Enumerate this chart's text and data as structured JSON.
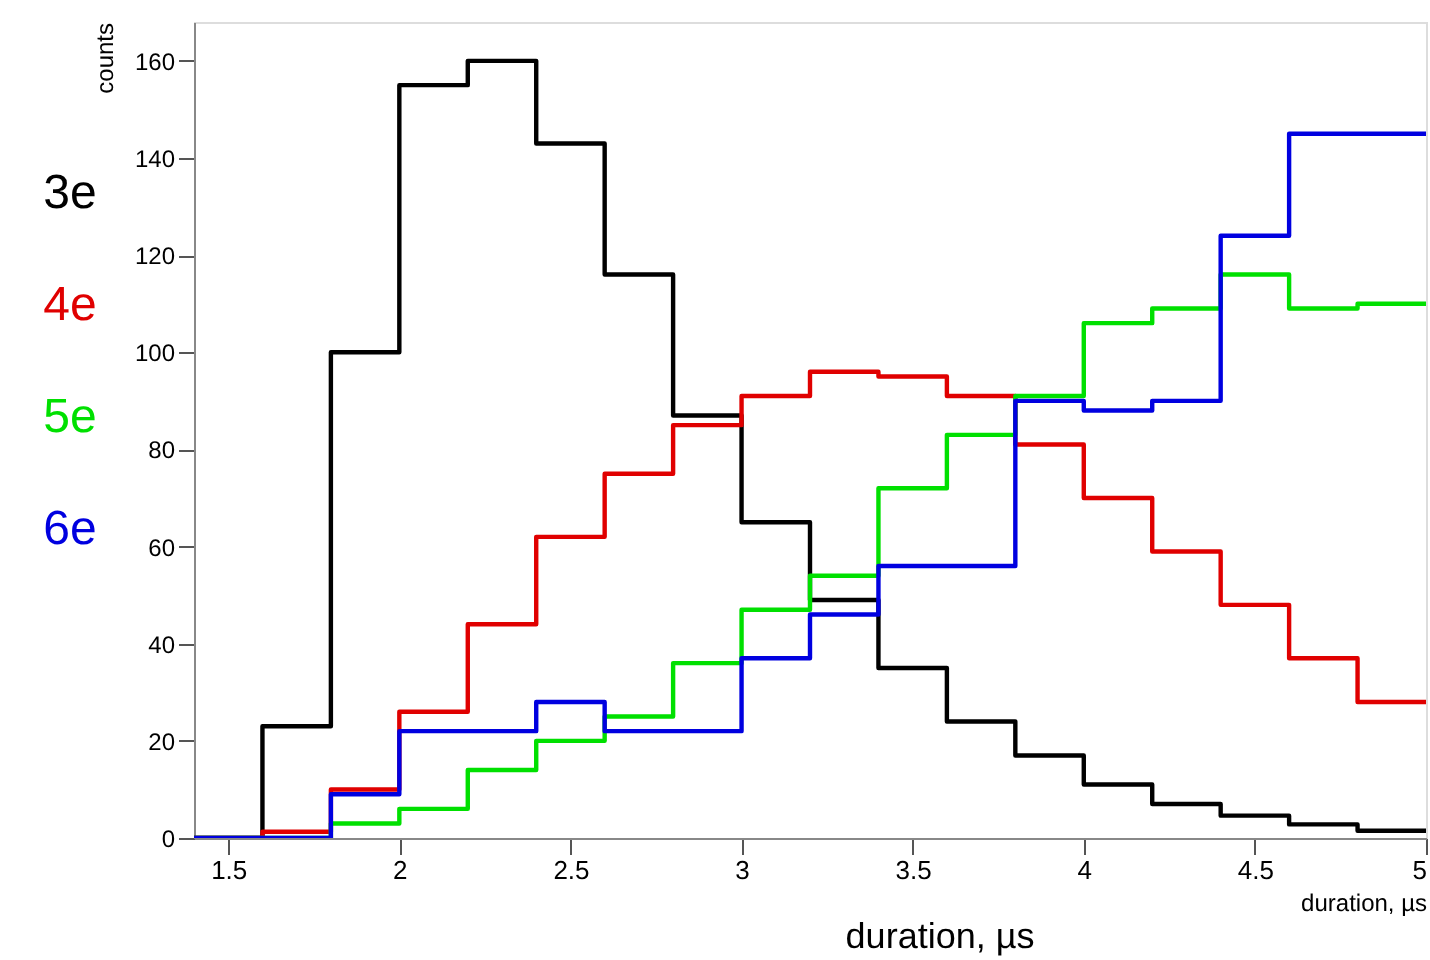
{
  "chart_data": {
    "type": "histogram",
    "xlabel": "duration, µs",
    "ylabel": "counts",
    "bins": [
      1.4,
      1.6,
      1.8,
      2.0,
      2.2,
      2.4,
      2.6,
      2.8,
      3.0,
      3.2,
      3.4,
      3.6,
      3.8,
      4.0,
      4.2,
      4.4,
      4.6,
      4.8,
      5.0
    ],
    "series": [
      {
        "name": "3e",
        "color": "#000000",
        "values": [
          0,
          23,
          100,
          155,
          160,
          143,
          116,
          87,
          65,
          49,
          35,
          24,
          17,
          11,
          7,
          4.6,
          2.8,
          1.5
        ]
      },
      {
        "name": "4e",
        "color": "#e00000",
        "values": [
          0,
          1.3,
          10,
          26,
          44,
          62,
          75,
          85,
          91,
          96,
          95,
          91,
          81,
          70,
          59,
          48,
          37,
          28
        ]
      },
      {
        "name": "5e",
        "color": "#00e000",
        "values": [
          0,
          0,
          3,
          6,
          14,
          20,
          25,
          36,
          47,
          54,
          72,
          83,
          91,
          106,
          109,
          116,
          109,
          110
        ]
      },
      {
        "name": "6e",
        "color": "#0000e0",
        "values": [
          0,
          0,
          9,
          22,
          22,
          28,
          22,
          22,
          37,
          46,
          56,
          56,
          90,
          88,
          90,
          124,
          145,
          145
        ]
      }
    ],
    "xlim": [
      1.4,
      5.0
    ],
    "ylim": [
      0,
      168
    ],
    "xticks": [
      1.5,
      2,
      2.5,
      3,
      3.5,
      4,
      4.5,
      5
    ],
    "yticks": [
      0,
      20,
      40,
      60,
      80,
      100,
      120,
      140,
      160
    ],
    "grid": false,
    "legend": "left",
    "annotations": [
      "duration, µs"
    ]
  }
}
